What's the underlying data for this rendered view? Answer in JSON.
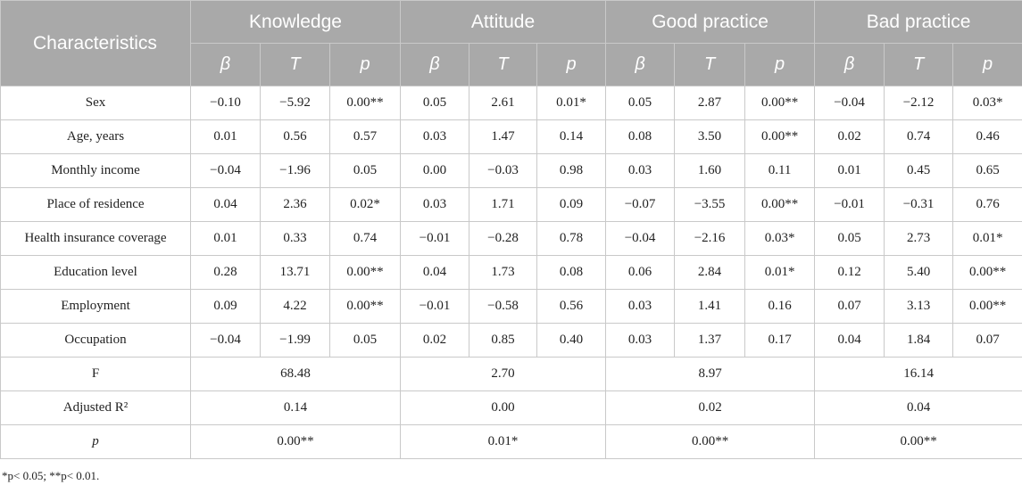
{
  "table": {
    "header_characteristics": "Characteristics",
    "groups": [
      "Knowledge",
      "Attitude",
      "Good practice",
      "Bad practice"
    ],
    "subheaders": [
      "β",
      "T",
      "p"
    ],
    "rows": [
      {
        "label": "Sex",
        "values": [
          "−0.10",
          "−5.92",
          "0.00**",
          "0.05",
          "2.61",
          "0.01*",
          "0.05",
          "2.87",
          "0.00**",
          "−0.04",
          "−2.12",
          "0.03*"
        ]
      },
      {
        "label": "Age, years",
        "values": [
          "0.01",
          "0.56",
          "0.57",
          "0.03",
          "1.47",
          "0.14",
          "0.08",
          "3.50",
          "0.00**",
          "0.02",
          "0.74",
          "0.46"
        ]
      },
      {
        "label": "Monthly income",
        "values": [
          "−0.04",
          "−1.96",
          "0.05",
          "0.00",
          "−0.03",
          "0.98",
          "0.03",
          "1.60",
          "0.11",
          "0.01",
          "0.45",
          "0.65"
        ]
      },
      {
        "label": "Place of residence",
        "values": [
          "0.04",
          "2.36",
          "0.02*",
          "0.03",
          "1.71",
          "0.09",
          "−0.07",
          "−3.55",
          "0.00**",
          "−0.01",
          "−0.31",
          "0.76"
        ]
      },
      {
        "label": "Health insurance coverage",
        "values": [
          "0.01",
          "0.33",
          "0.74",
          "−0.01",
          "−0.28",
          "0.78",
          "−0.04",
          "−2.16",
          "0.03*",
          "0.05",
          "2.73",
          "0.01*"
        ]
      },
      {
        "label": "Education level",
        "values": [
          "0.28",
          "13.71",
          "0.00**",
          "0.04",
          "1.73",
          "0.08",
          "0.06",
          "2.84",
          "0.01*",
          "0.12",
          "5.40",
          "0.00**"
        ]
      },
      {
        "label": "Employment",
        "values": [
          "0.09",
          "4.22",
          "0.00**",
          "−0.01",
          "−0.58",
          "0.56",
          "0.03",
          "1.41",
          "0.16",
          "0.07",
          "3.13",
          "0.00**"
        ]
      },
      {
        "label": "Occupation",
        "values": [
          "−0.04",
          "−1.99",
          "0.05",
          "0.02",
          "0.85",
          "0.40",
          "0.03",
          "1.37",
          "0.17",
          "0.04",
          "1.84",
          "0.07"
        ]
      }
    ],
    "summary": [
      {
        "label": "F",
        "values": [
          "68.48",
          "2.70",
          "8.97",
          "16.14"
        ]
      },
      {
        "label": "Adjusted R²",
        "values": [
          "0.14",
          "0.00",
          "0.02",
          "0.04"
        ]
      },
      {
        "label": "p",
        "values": [
          "0.00**",
          "0.01*",
          "0.00**",
          "0.00**"
        ]
      }
    ]
  },
  "footnote": "*p< 0.05; **p< 0.01."
}
